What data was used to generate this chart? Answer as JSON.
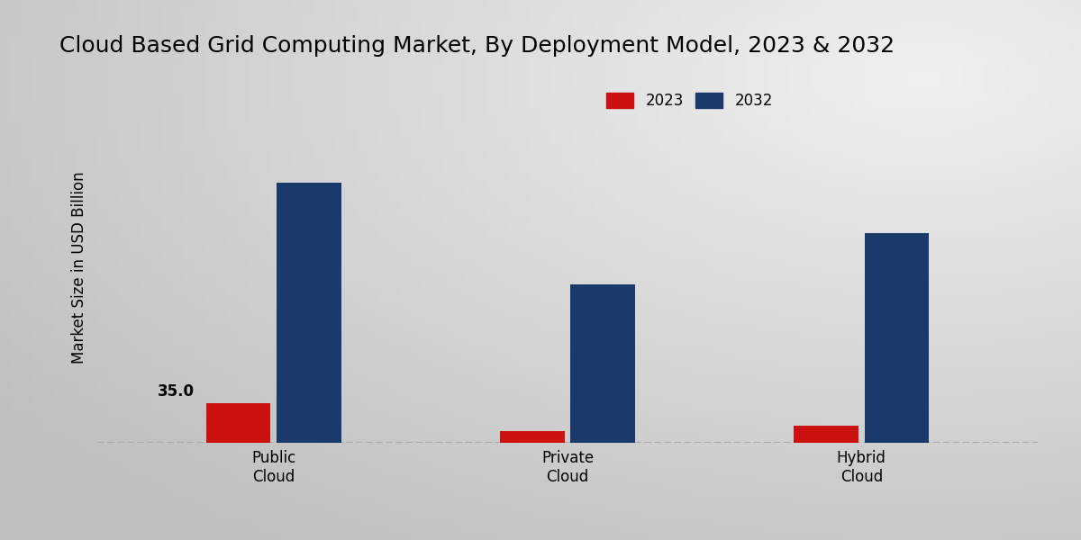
{
  "title": "Cloud Based Grid Computing Market, By Deployment Model, 2023 & 2032",
  "categories": [
    "Public\nCloud",
    "Private\nCloud",
    "Hybrid\nCloud"
  ],
  "values_2023": [
    35.0,
    10.0,
    15.0
  ],
  "values_2032": [
    230.0,
    140.0,
    185.0
  ],
  "color_2023": "#cc1111",
  "color_2032": "#1a3a6b",
  "annotation_value": "35.0",
  "annotation_index": 0,
  "ylabel": "Market Size in USD Billion",
  "legend_labels": [
    "2023",
    "2032"
  ],
  "bar_width": 0.22,
  "ylim": [
    0,
    310
  ],
  "bg_color_light": "#f0f0f0",
  "bg_color_dark": "#c8c8c8",
  "title_fontsize": 18,
  "axis_label_fontsize": 12,
  "tick_label_fontsize": 12,
  "legend_fontsize": 12,
  "bottom_border_color": "#cc1111",
  "dashed_line_color": "#aaaaaa"
}
